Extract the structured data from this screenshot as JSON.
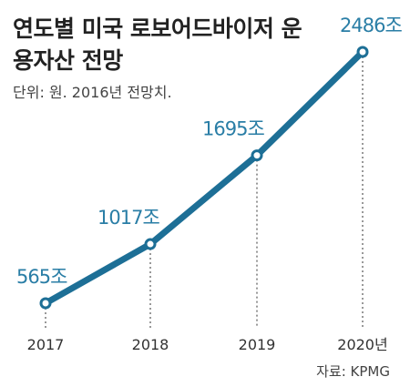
{
  "title": "연도별 미국 로보어드바이저 운용자산 전망",
  "subtitle": "단위: 원. 2016년 전망치.",
  "source": "자료: KPMG",
  "colors": {
    "line": "#1d6f96",
    "label": "#2a7ea6"
  },
  "chart_data": {
    "type": "line",
    "categories": [
      "2017",
      "2018",
      "2019",
      "2020년"
    ],
    "series": [
      {
        "values": [
          565,
          1017,
          1695,
          2486
        ]
      }
    ],
    "data_labels": [
      "565조",
      "1017조",
      "1695조",
      "2486조"
    ],
    "ylabel": "",
    "xlabel": "",
    "grid": false,
    "y_axis_visible": false
  }
}
